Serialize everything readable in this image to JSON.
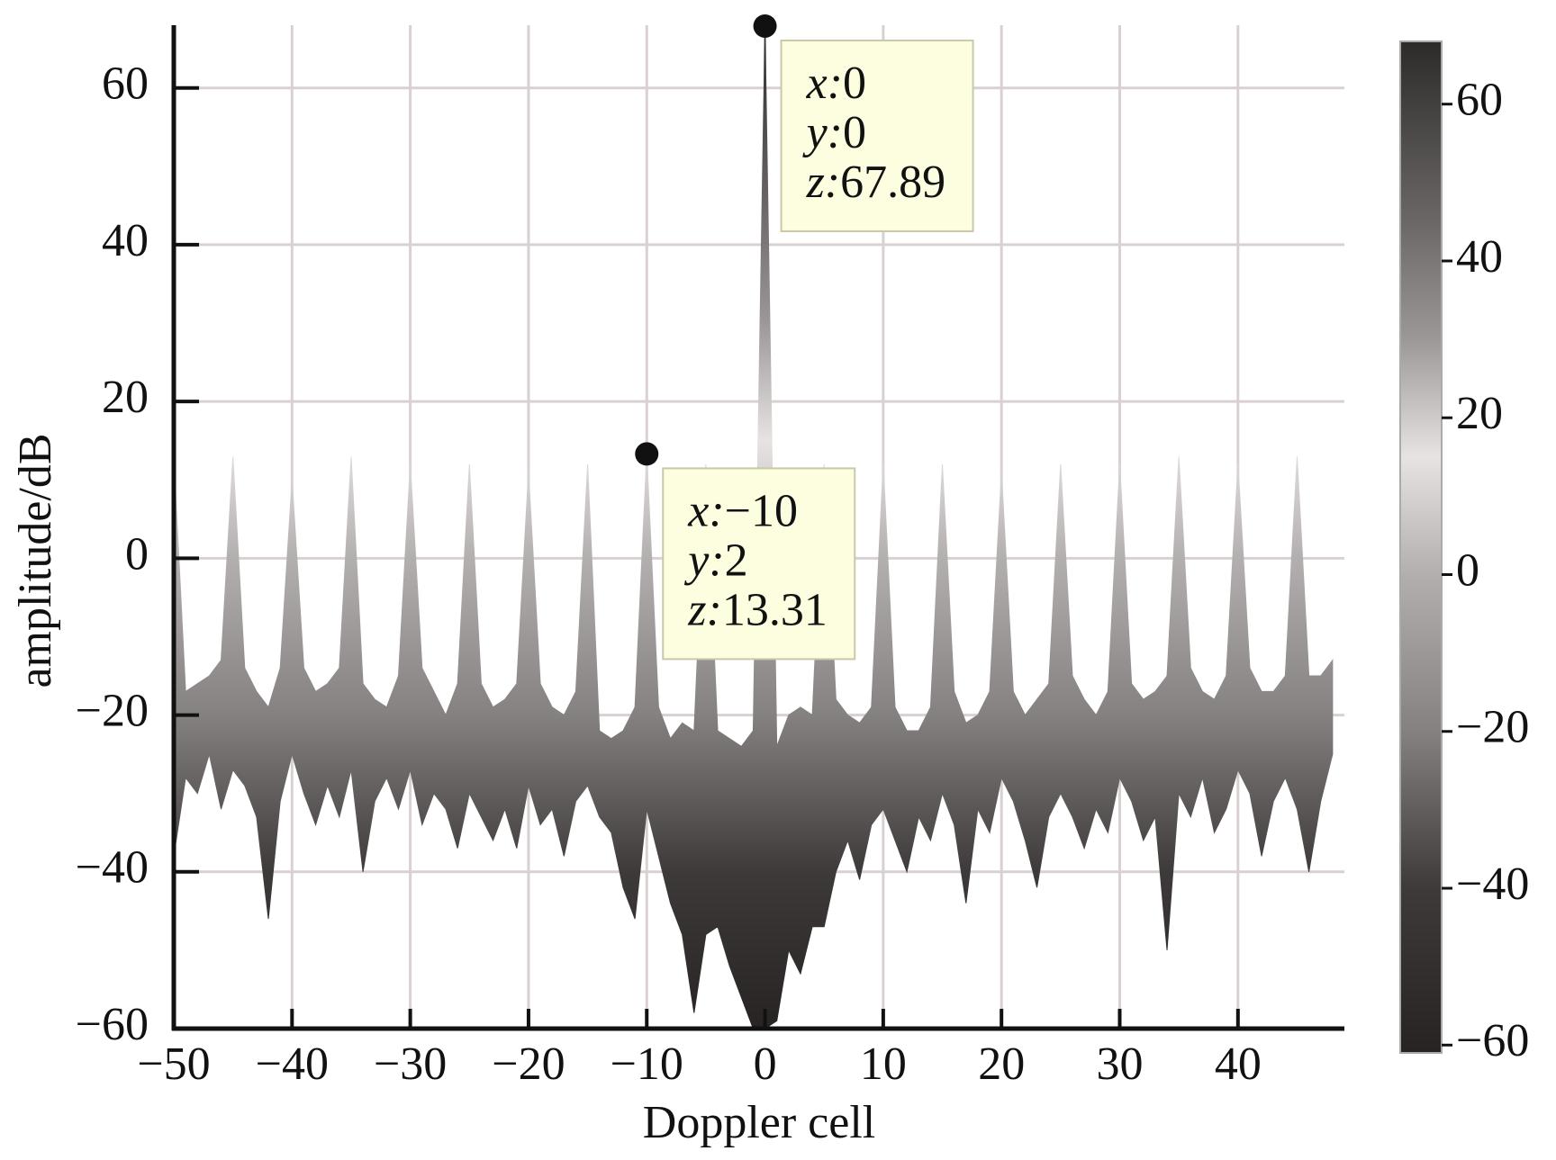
{
  "chart_data": {
    "type": "band",
    "xlabel": "Doppler cell",
    "ylabel": "amplitude/dB",
    "x": [
      -50,
      -49,
      -48,
      -47,
      -46,
      -45,
      -44,
      -43,
      -42,
      -41,
      -40,
      -39,
      -38,
      -37,
      -36,
      -35,
      -34,
      -33,
      -32,
      -31,
      -30,
      -29,
      -28,
      -27,
      -26,
      -25,
      -24,
      -23,
      -22,
      -21,
      -20,
      -19,
      -18,
      -17,
      -16,
      -15,
      -14,
      -13,
      -12,
      -11,
      -10,
      -9,
      -8,
      -7,
      -6,
      -5,
      -4,
      -3,
      -2,
      -1,
      0,
      1,
      2,
      3,
      4,
      5,
      6,
      7,
      8,
      9,
      10,
      11,
      12,
      13,
      14,
      15,
      16,
      17,
      18,
      19,
      20,
      21,
      22,
      23,
      24,
      25,
      26,
      27,
      28,
      29,
      30,
      31,
      32,
      33,
      34,
      35,
      36,
      37,
      38,
      39,
      40,
      41,
      42,
      43,
      44,
      45,
      46,
      47,
      48
    ],
    "high": [
      13,
      -17,
      -16,
      -15,
      -13,
      13,
      -14,
      -17,
      -19,
      -14,
      10,
      -14,
      -17,
      -16,
      -14,
      13,
      -16,
      -18,
      -19,
      -15,
      12,
      -14,
      -17,
      -20,
      -16,
      12,
      -16,
      -19,
      -18,
      -16,
      11,
      -16,
      -19,
      -20,
      -17,
      12,
      -22,
      -23,
      -22,
      -19,
      13.31,
      -19,
      -23,
      -21,
      -22,
      12,
      -22,
      -23,
      -24,
      -22,
      67.89,
      -24,
      -20,
      -19,
      -20,
      12,
      -18,
      -20,
      -21,
      -19,
      12,
      -19,
      -22,
      -22,
      -19,
      12,
      -17,
      -21,
      -20,
      -17,
      11,
      -17,
      -20,
      -18,
      -16,
      12,
      -15,
      -18,
      -20,
      -17,
      12,
      -16,
      -18,
      -17,
      -15,
      13,
      -14,
      -17,
      -18,
      -15,
      12,
      -14,
      -17,
      -17,
      -15,
      13,
      -15,
      -15,
      -13
    ],
    "low": [
      -38,
      -28,
      -30,
      -25,
      -32,
      -27,
      -29,
      -33,
      -46,
      -31,
      -25,
      -30,
      -34,
      -29,
      -33,
      -27,
      -40,
      -31,
      -28,
      -32,
      -27,
      -34,
      -30,
      -32,
      -37,
      -30,
      -33,
      -36,
      -32,
      -37,
      -29,
      -34,
      -32,
      -38,
      -31,
      -29,
      -33,
      -35,
      -42,
      -46,
      -32,
      -38,
      -44,
      -48,
      -58,
      -48,
      -47,
      -52,
      -56,
      -60,
      -60,
      -59,
      -50,
      -53,
      -47,
      -47,
      -40,
      -36,
      -41,
      -34,
      -32,
      -36,
      -40,
      -33,
      -36,
      -30,
      -34,
      -44,
      -32,
      -35,
      -28,
      -31,
      -36,
      -42,
      -33,
      -30,
      -33,
      -37,
      -32,
      -35,
      -28,
      -31,
      -36,
      -33,
      -50,
      -30,
      -33,
      -28,
      -35,
      -32,
      -27,
      -30,
      -38,
      -31,
      -28,
      -32,
      -40,
      -31,
      -25
    ],
    "xlim": [
      -50,
      49
    ],
    "ylim": [
      -60,
      68
    ],
    "xticks": [
      {
        "value": -50,
        "label": "−50"
      },
      {
        "value": -40,
        "label": "−40"
      },
      {
        "value": -30,
        "label": "−30"
      },
      {
        "value": -20,
        "label": "−20"
      },
      {
        "value": -10,
        "label": "−10"
      },
      0,
      10,
      20,
      30,
      40
    ],
    "yticks": [
      {
        "value": -60,
        "label": "−60"
      },
      {
        "value": -40,
        "label": "−40"
      },
      {
        "value": -20,
        "label": "−20"
      },
      0,
      20,
      40,
      60
    ],
    "grid": true,
    "clim": [
      -61,
      68
    ],
    "cticks": [
      {
        "value": -60,
        "label": "−60"
      },
      {
        "value": -40,
        "label": "−40"
      },
      {
        "value": -20,
        "label": "−20"
      },
      0,
      20,
      40,
      60
    ],
    "colormap": [
      {
        "value": -61,
        "color": "#262322"
      },
      {
        "value": -40,
        "color": "#3d3a39"
      },
      {
        "value": -20,
        "color": "#858181"
      },
      {
        "value": 0,
        "color": "#b3afae"
      },
      {
        "value": 15,
        "color": "#e6e3e2"
      },
      {
        "value": 30,
        "color": "#9c9898"
      },
      {
        "value": 45,
        "color": "#6b6767"
      },
      {
        "value": 68,
        "color": "#2d2a2a"
      }
    ],
    "annotations": [
      {
        "x": 0,
        "z": 67.89,
        "lines": [
          [
            "x:",
            "0"
          ],
          [
            "y:",
            "0"
          ],
          [
            "z:",
            "67.89"
          ]
        ]
      },
      {
        "x": -10,
        "z": 13.31,
        "lines": [
          [
            "x:",
            "−10"
          ],
          [
            "y:",
            "2"
          ],
          [
            "z:",
            "13.31"
          ]
        ]
      }
    ]
  }
}
